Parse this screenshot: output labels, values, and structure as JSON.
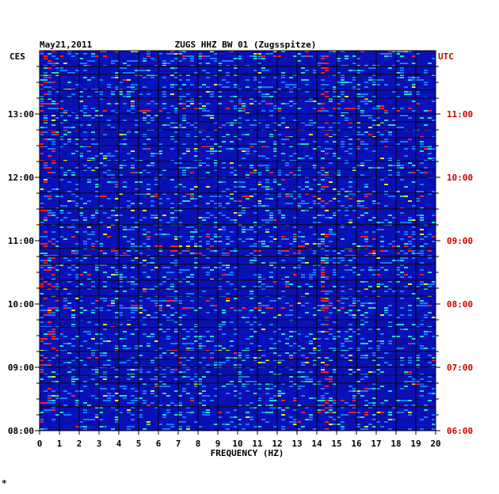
{
  "header": {
    "date": "May21,2011",
    "station": "ZUGS HHZ BW 01 (Zugsspitze)"
  },
  "chart_data": {
    "type": "heatmap",
    "title": "ZUGS HHZ BW 01 (Zugsspitze)",
    "xlabel": "FREQUENCY (HZ)",
    "xlim": [
      0,
      20
    ],
    "x_ticks": [
      "0",
      "1",
      "2",
      "3",
      "4",
      "5",
      "6",
      "7",
      "8",
      "9",
      "10",
      "11",
      "12",
      "13",
      "14",
      "15",
      "16",
      "17",
      "18",
      "19",
      "20"
    ],
    "left_axis": {
      "label": "CES",
      "ticks": [
        "08:00",
        "09:00",
        "10:00",
        "11:00",
        "12:00",
        "13:00"
      ]
    },
    "right_axis": {
      "label": "UTC",
      "ticks": [
        "06:00",
        "07:00",
        "08:00",
        "09:00",
        "10:00",
        "11:00"
      ]
    },
    "time_range_ces": [
      "08:00",
      "13:45"
    ],
    "colors": {
      "background": "#0a10b0",
      "low": "#0a14c8",
      "mid": "#1878ff",
      "high": "#28d8c8",
      "peak": "#f0e020",
      "max": "#ff2020",
      "band_divider": "#0a0a2a",
      "grid": "#000000",
      "axis_text": "#000000",
      "utc_text": "#cc0000"
    },
    "features": [
      {
        "label": "persistent spectral line",
        "frequency_hz": 14.3
      },
      {
        "label": "low-frequency energy",
        "frequency_hz": 0.3
      }
    ]
  },
  "footer": {
    "mark": "*"
  }
}
